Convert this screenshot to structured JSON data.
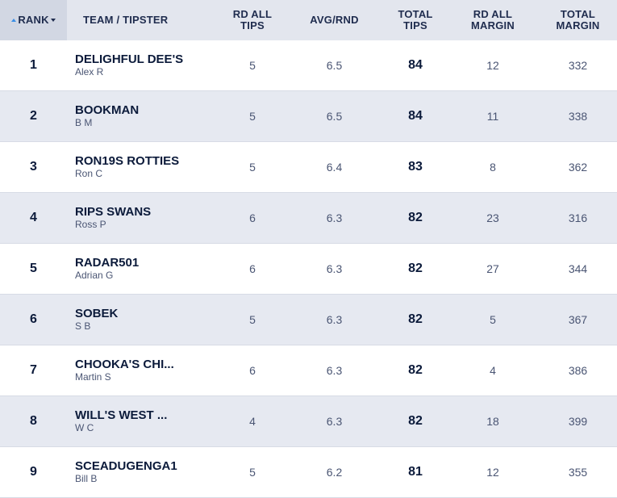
{
  "header": {
    "rank": "RANK",
    "team": "TEAM / TIPSTER",
    "rd_all_tips": "RD ALL\nTIPS",
    "avg_rnd": "AVG/RND",
    "total_tips": "TOTAL\nTIPS",
    "rd_all_margin": "RD ALL\nMARGIN",
    "total_margin": "TOTAL\nMARGIN"
  },
  "rows": [
    {
      "rank": "1",
      "team": "DELIGHFUL DEE'S",
      "tipster": "Alex R",
      "rd_all_tips": "5",
      "avg_rnd": "6.5",
      "total_tips": "84",
      "rd_all_margin": "12",
      "total_margin": "332"
    },
    {
      "rank": "2",
      "team": "BOOKMAN",
      "tipster": "B M",
      "rd_all_tips": "5",
      "avg_rnd": "6.5",
      "total_tips": "84",
      "rd_all_margin": "11",
      "total_margin": "338"
    },
    {
      "rank": "3",
      "team": "RON19S ROTTIES",
      "tipster": "Ron C",
      "rd_all_tips": "5",
      "avg_rnd": "6.4",
      "total_tips": "83",
      "rd_all_margin": "8",
      "total_margin": "362"
    },
    {
      "rank": "4",
      "team": "RIPS SWANS",
      "tipster": "Ross P",
      "rd_all_tips": "6",
      "avg_rnd": "6.3",
      "total_tips": "82",
      "rd_all_margin": "23",
      "total_margin": "316"
    },
    {
      "rank": "5",
      "team": "RADAR501",
      "tipster": "Adrian G",
      "rd_all_tips": "6",
      "avg_rnd": "6.3",
      "total_tips": "82",
      "rd_all_margin": "27",
      "total_margin": "344"
    },
    {
      "rank": "6",
      "team": "SOBEK",
      "tipster": "S B",
      "rd_all_tips": "5",
      "avg_rnd": "6.3",
      "total_tips": "82",
      "rd_all_margin": "5",
      "total_margin": "367"
    },
    {
      "rank": "7",
      "team": "CHOOKA'S CHI...",
      "tipster": "Martin S",
      "rd_all_tips": "6",
      "avg_rnd": "6.3",
      "total_tips": "82",
      "rd_all_margin": "4",
      "total_margin": "386"
    },
    {
      "rank": "8",
      "team": "WILL'S WEST ...",
      "tipster": "W C",
      "rd_all_tips": "4",
      "avg_rnd": "6.3",
      "total_tips": "82",
      "rd_all_margin": "18",
      "total_margin": "399"
    },
    {
      "rank": "9",
      "team": "SCEADUGENGA1",
      "tipster": "Bill B",
      "rd_all_tips": "5",
      "avg_rnd": "6.2",
      "total_tips": "81",
      "rd_all_margin": "12",
      "total_margin": "355"
    }
  ],
  "colors": {
    "header_bg": "#e3e6ee",
    "row_alt_bg": "#e6e9f1",
    "text_dark": "#0b1a3a",
    "sort_accent": "#3a8ee6"
  },
  "icons": {
    "sort": "sort-up-down-icon"
  }
}
